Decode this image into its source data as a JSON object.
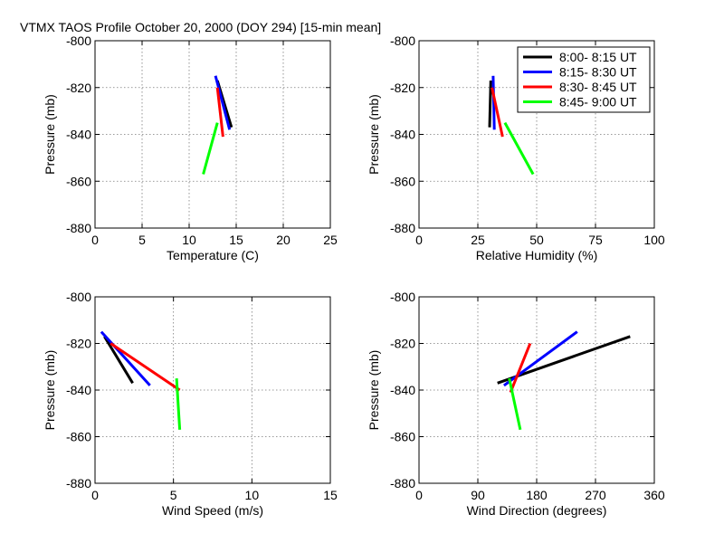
{
  "figure_title": "VTMX TAOS Profile   October 20, 2000 (DOY 294) [15-min mean]",
  "colors": {
    "black": "#000000",
    "blue": "#0000ff",
    "red": "#ff0000",
    "green": "#00ff00"
  },
  "chart_data": [
    {
      "type": "line",
      "title": "",
      "xlabel": "Temperature (C)",
      "ylabel": "Pressure (mb)",
      "xlim": [
        0,
        25
      ],
      "ylim": [
        -880,
        -800
      ],
      "xticks": [
        0,
        5,
        10,
        15,
        20,
        25
      ],
      "yticks": [
        -880,
        -860,
        -840,
        -820,
        -800
      ],
      "grid": true,
      "series": [
        {
          "name": "8:00- 8:15 UT",
          "color": "#000000",
          "points": [
            [
              13.0,
              -817
            ],
            [
              14.5,
              -837
            ]
          ]
        },
        {
          "name": "8:15- 8:30 UT",
          "color": "#0000ff",
          "points": [
            [
              12.8,
              -815
            ],
            [
              14.3,
              -838
            ]
          ]
        },
        {
          "name": "8:30- 8:45 UT",
          "color": "#ff0000",
          "points": [
            [
              13.0,
              -820
            ],
            [
              13.6,
              -841
            ]
          ]
        },
        {
          "name": "8:45- 9:00 UT",
          "color": "#00ff00",
          "points": [
            [
              13.0,
              -835
            ],
            [
              11.5,
              -857
            ]
          ]
        }
      ]
    },
    {
      "type": "line",
      "title": "",
      "xlabel": "Relative Humidity (%)",
      "ylabel": "Pressure (mb)",
      "xlim": [
        0,
        100
      ],
      "ylim": [
        -880,
        -800
      ],
      "xticks": [
        0,
        25,
        50,
        75,
        100
      ],
      "yticks": [
        -880,
        -860,
        -840,
        -820,
        -800
      ],
      "grid": true,
      "legend": "top-right",
      "series": [
        {
          "name": "8:00- 8:15 UT",
          "color": "#000000",
          "points": [
            [
              30.5,
              -817
            ],
            [
              30.0,
              -837
            ]
          ]
        },
        {
          "name": "8:15- 8:30 UT",
          "color": "#0000ff",
          "points": [
            [
              31.5,
              -815
            ],
            [
              32.0,
              -838
            ]
          ]
        },
        {
          "name": "8:30- 8:45 UT",
          "color": "#ff0000",
          "points": [
            [
              31.0,
              -820
            ],
            [
              35.5,
              -841
            ]
          ]
        },
        {
          "name": "8:45- 9:00 UT",
          "color": "#00ff00",
          "points": [
            [
              36.5,
              -835
            ],
            [
              48.5,
              -857
            ]
          ]
        }
      ]
    },
    {
      "type": "line",
      "title": "",
      "xlabel": "Wind Speed (m/s)",
      "ylabel": "Pressure (mb)",
      "xlim": [
        0,
        15
      ],
      "ylim": [
        -880,
        -800
      ],
      "xticks": [
        0,
        5,
        10,
        15
      ],
      "yticks": [
        -880,
        -860,
        -840,
        -820,
        -800
      ],
      "grid": true,
      "series": [
        {
          "name": "8:00- 8:15 UT",
          "color": "#000000",
          "points": [
            [
              0.6,
              -817
            ],
            [
              2.4,
              -837
            ]
          ]
        },
        {
          "name": "8:15- 8:30 UT",
          "color": "#0000ff",
          "points": [
            [
              0.4,
              -815
            ],
            [
              3.5,
              -838
            ]
          ]
        },
        {
          "name": "8:30- 8:45 UT",
          "color": "#ff0000",
          "points": [
            [
              1.0,
              -820
            ],
            [
              5.4,
              -840
            ]
          ]
        },
        {
          "name": "8:45- 9:00 UT",
          "color": "#00ff00",
          "points": [
            [
              5.2,
              -835
            ],
            [
              5.4,
              -857
            ]
          ]
        }
      ]
    },
    {
      "type": "line",
      "title": "",
      "xlabel": "Wind Direction (degrees)",
      "ylabel": "Pressure (mb)",
      "xlim": [
        0,
        360
      ],
      "ylim": [
        -880,
        -800
      ],
      "xticks": [
        0,
        90,
        180,
        270,
        360
      ],
      "yticks": [
        -880,
        -860,
        -840,
        -820,
        -800
      ],
      "grid": true,
      "series": [
        {
          "name": "8:00- 8:15 UT",
          "color": "#000000",
          "points": [
            [
              323,
              -817
            ],
            [
              120,
              -837
            ]
          ]
        },
        {
          "name": "8:15- 8:30 UT",
          "color": "#0000ff",
          "points": [
            [
              242,
              -815
            ],
            [
              130,
              -838
            ]
          ]
        },
        {
          "name": "8:30- 8:45 UT",
          "color": "#ff0000",
          "points": [
            [
              170,
              -820
            ],
            [
              140,
              -841
            ]
          ]
        },
        {
          "name": "8:45- 9:00 UT",
          "color": "#00ff00",
          "points": [
            [
              138,
              -835
            ],
            [
              155,
              -857
            ]
          ]
        }
      ]
    }
  ]
}
